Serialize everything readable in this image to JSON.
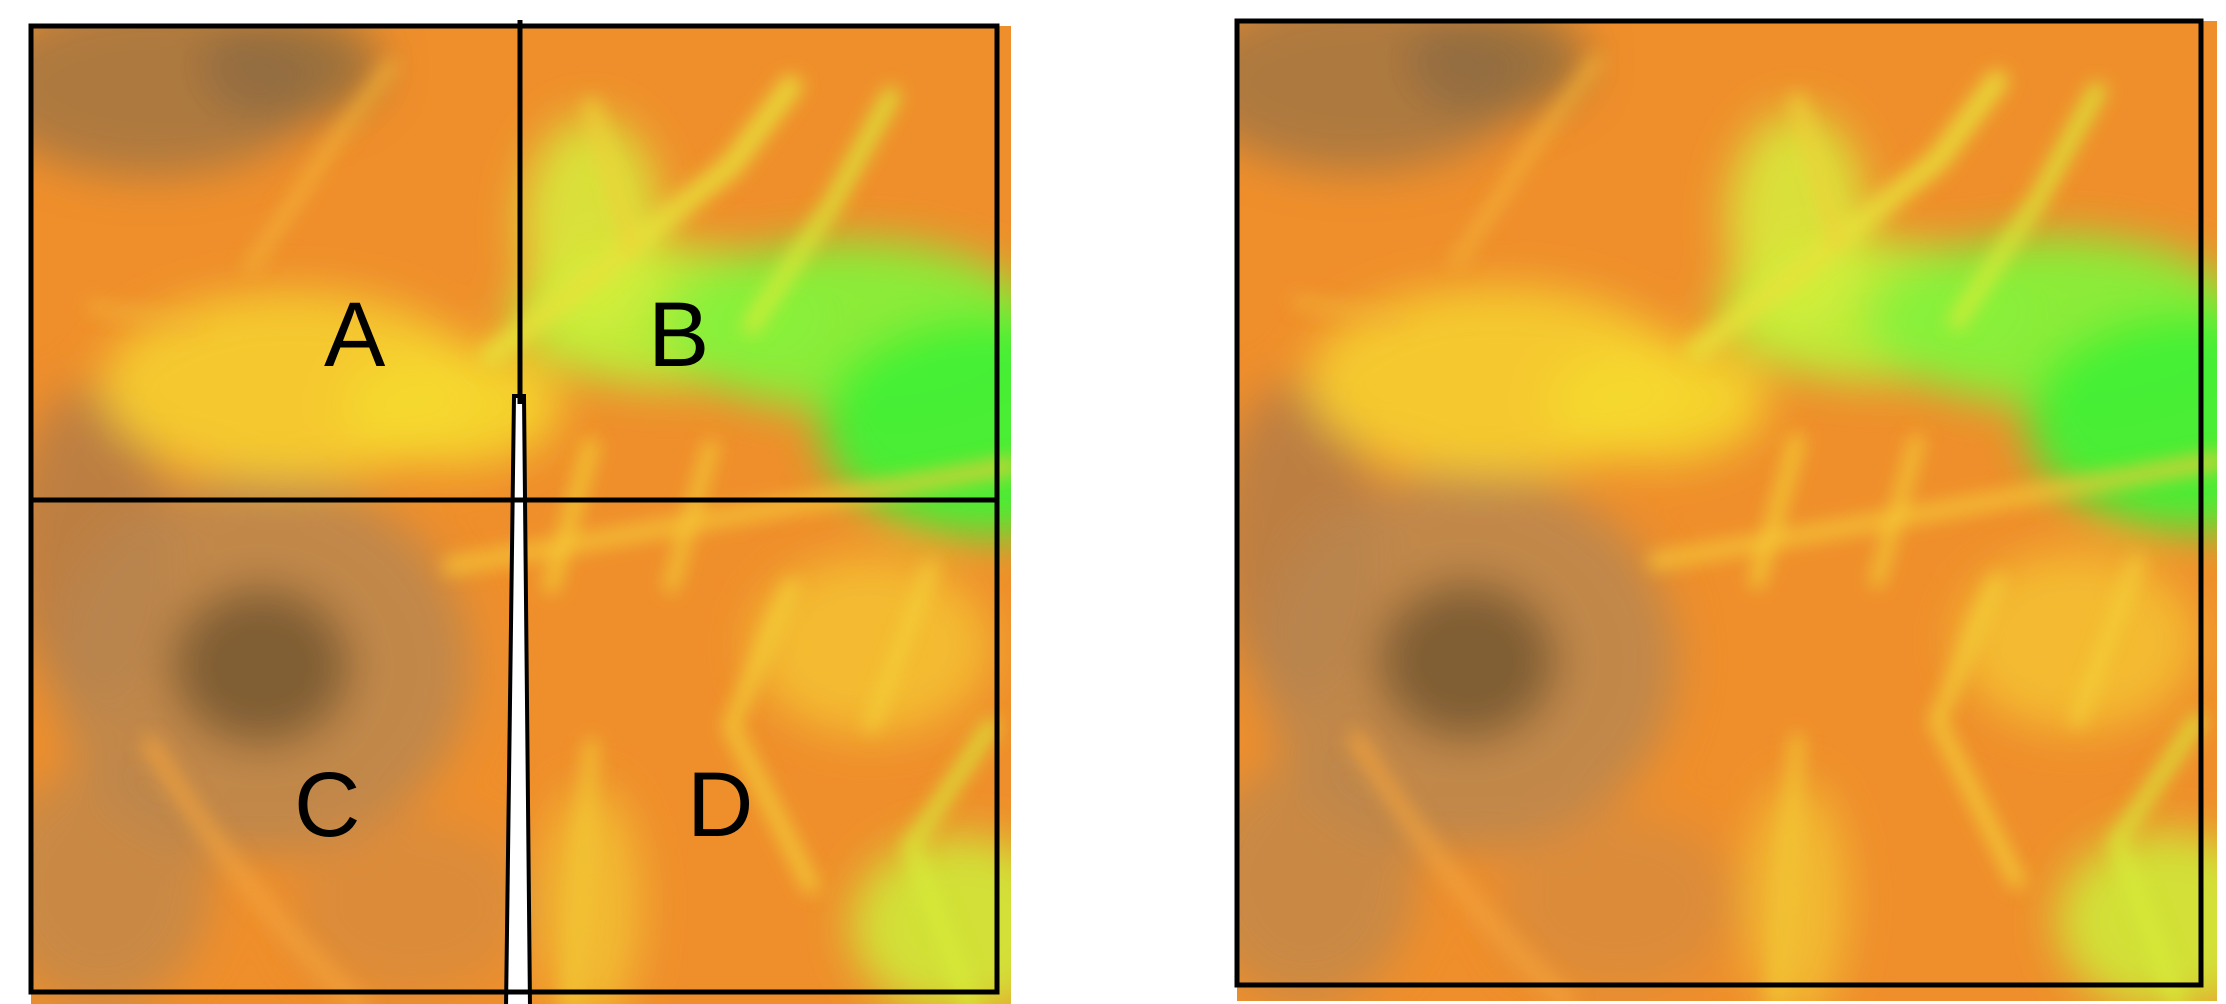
{
  "panels": {
    "mosaic": {
      "tiles": [
        {
          "label": "A"
        },
        {
          "label": "B"
        },
        {
          "label": "C"
        },
        {
          "label": "D"
        }
      ]
    },
    "merged": {}
  },
  "colors": {
    "lowland_green": "#44f035",
    "yellow_green": "#c8f03a",
    "yellow": "#f5d92e",
    "orange": "#f08c2a",
    "tan": "#c8874a",
    "brown": "#7a5a34",
    "border": "#000000"
  }
}
